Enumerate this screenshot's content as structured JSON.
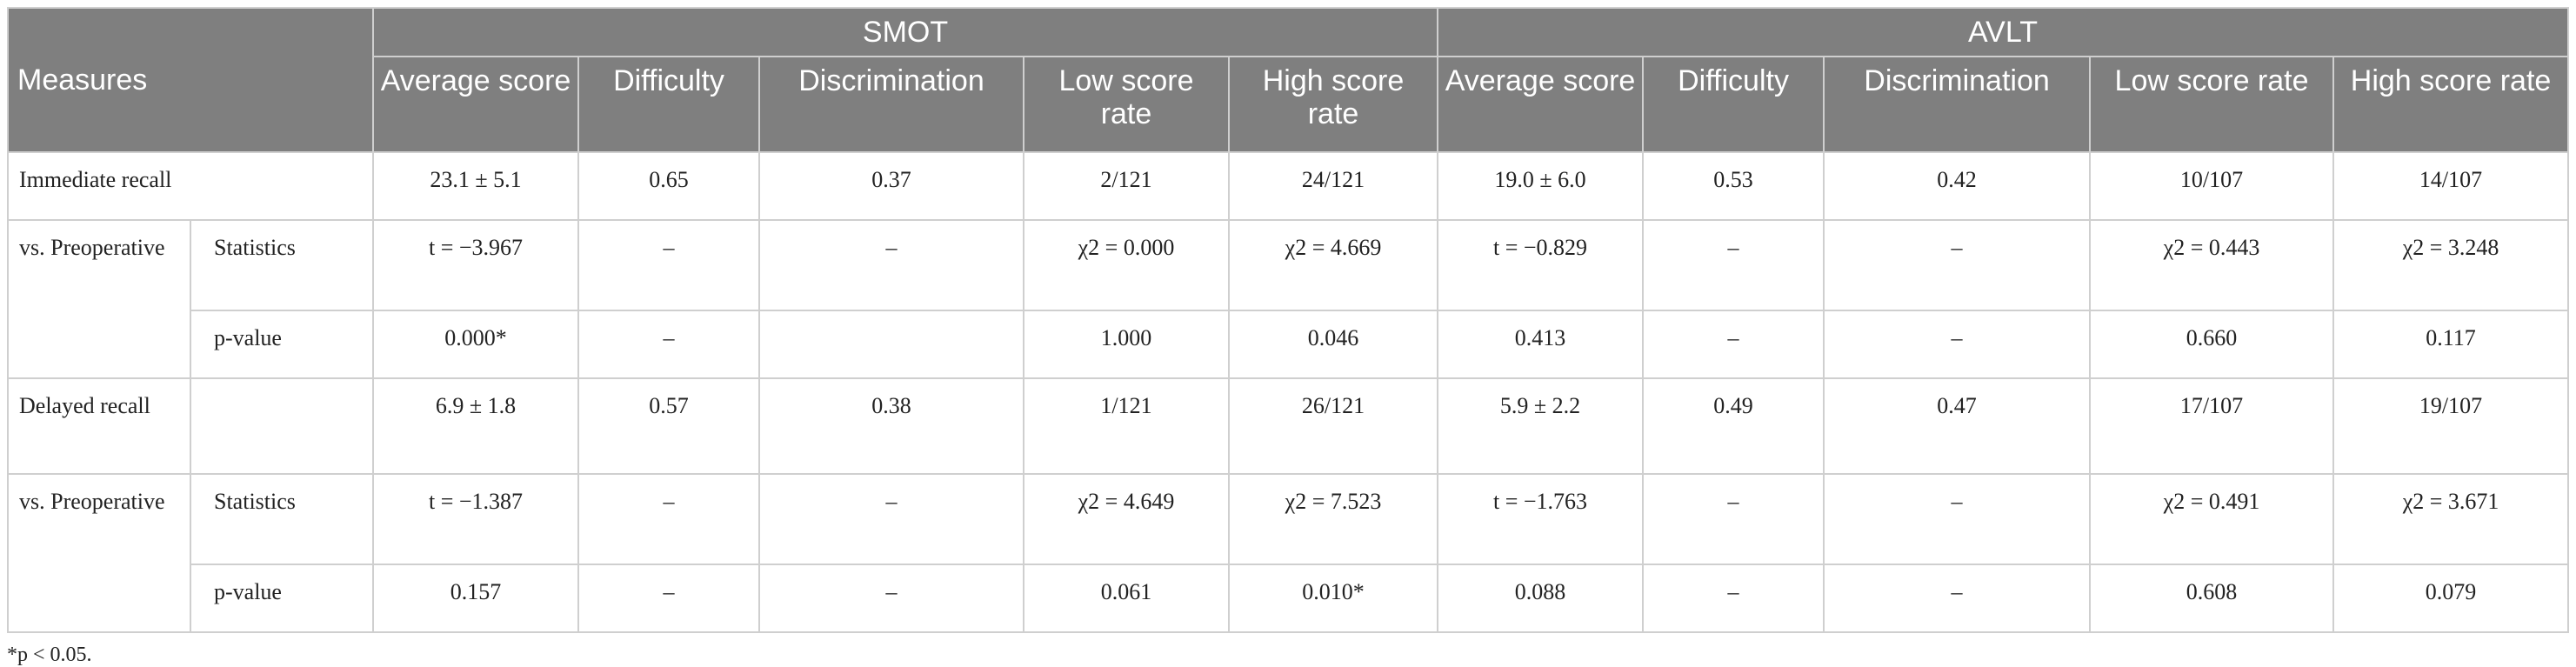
{
  "header": {
    "measures": "Measures",
    "groups": [
      "SMOT",
      "AVLT"
    ],
    "columns": [
      "Average score",
      "Difficulty",
      "Discrimination",
      "Low score rate",
      "High score rate",
      "Average score",
      "Difficulty",
      "Discrimination",
      "Low score rate",
      "High score rate"
    ]
  },
  "rows": {
    "immediate": {
      "label": "Immediate recall",
      "values": [
        "23.1 ± 5.1",
        "0.65",
        "0.37",
        "2/121",
        "24/121",
        "19.0 ± 6.0",
        "0.53",
        "0.42",
        "10/107",
        "14/107"
      ]
    },
    "imm_vs": {
      "label": "vs. Preoperative",
      "stat_label": "Statistics",
      "stat_values": [
        "t = −3.967",
        "–",
        "–",
        "χ2 = 0.000",
        "χ2 = 4.669",
        "t = −0.829",
        "–",
        "–",
        "χ2 = 0.443",
        "χ2 = 3.248"
      ],
      "p_label": "p-value",
      "p_values": [
        "0.000*",
        "–",
        "",
        "1.000",
        "0.046",
        "0.413",
        "–",
        "–",
        "0.660",
        "0.117"
      ]
    },
    "delayed": {
      "label": "Delayed recall",
      "values": [
        "6.9 ± 1.8",
        "0.57",
        "0.38",
        "1/121",
        "26/121",
        "5.9 ± 2.2",
        "0.49",
        "0.47",
        "17/107",
        "19/107"
      ]
    },
    "del_vs": {
      "label": "vs. Preoperative",
      "stat_label": "Statistics",
      "stat_values": [
        "t = −1.387",
        "–",
        "–",
        "χ2 = 4.649",
        "χ2 = 7.523",
        "t = −1.763",
        "–",
        "–",
        "χ2 = 0.491",
        "χ2 = 3.671"
      ],
      "p_label": "p-value",
      "p_values": [
        "0.157",
        "–",
        "–",
        "0.061",
        "0.010*",
        "0.088",
        "–",
        "–",
        "0.608",
        "0.079"
      ]
    }
  },
  "footnote": "*p < 0.05."
}
